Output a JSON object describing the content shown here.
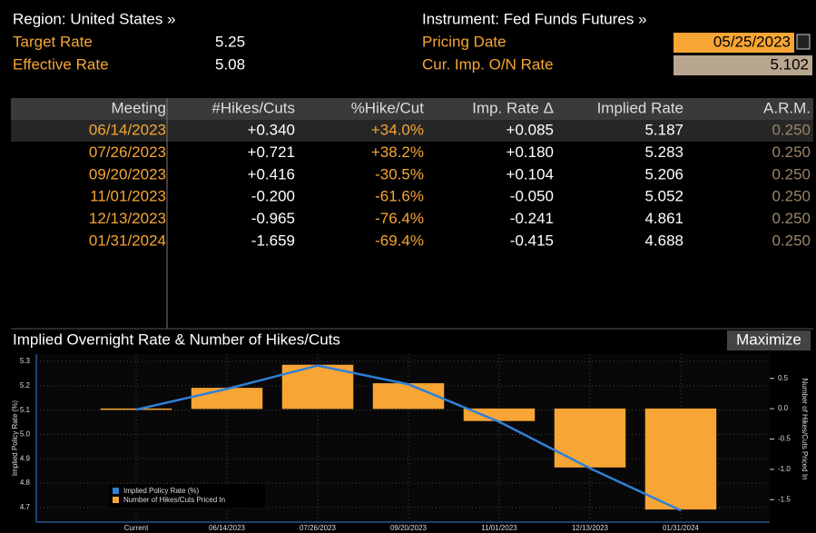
{
  "header": {
    "region": "Region: United States »",
    "instrument": "Instrument: Fed Funds Futures »",
    "target_rate": {
      "label": "Target Rate",
      "value": "5.25"
    },
    "effective_rate": {
      "label": "Effective Rate",
      "value": "5.08"
    },
    "pricing_date": {
      "label": "Pricing Date",
      "value": "05/25/2023"
    },
    "cur_imp_rate": {
      "label": "Cur. Imp. O/N Rate",
      "value": "5.102"
    }
  },
  "table": {
    "columns": [
      "Meeting",
      "#Hikes/Cuts",
      "%Hike/Cut",
      "Imp. Rate Δ",
      "Implied Rate",
      "A.R.M."
    ],
    "rows": [
      [
        "06/14/2023",
        "+0.340",
        "+34.0%",
        "+0.085",
        "5.187",
        "0.250"
      ],
      [
        "07/26/2023",
        "+0.721",
        "+38.2%",
        "+0.180",
        "5.283",
        "0.250"
      ],
      [
        "09/20/2023",
        "+0.416",
        "-30.5%",
        "+0.104",
        "5.206",
        "0.250"
      ],
      [
        "11/01/2023",
        "-0.200",
        "-61.6%",
        "-0.050",
        "5.052",
        "0.250"
      ],
      [
        "12/13/2023",
        "-0.965",
        "-76.4%",
        "-0.241",
        "4.861",
        "0.250"
      ],
      [
        "01/31/2024",
        "-1.659",
        "-69.4%",
        "-0.415",
        "4.688",
        "0.250"
      ]
    ]
  },
  "chart_panel": {
    "title": "Implied Overnight Rate & Number of Hikes/Cuts",
    "button": "Maximize"
  },
  "chart_data": {
    "type": "combo",
    "categories": [
      "Current",
      "06/14/2023",
      "07/26/2023",
      "09/20/2023",
      "11/01/2023",
      "12/13/2023",
      "01/31/2024"
    ],
    "ylabel": "Implied Policy Rate (%)",
    "y2label": "Number of Hikes/Cuts Priced In",
    "ylim": [
      4.64,
      5.33
    ],
    "yticks": [
      5.3,
      5.2,
      5.1,
      {
        "value": 5,
        "label": "5.0"
      },
      4.9,
      4.8,
      4.7
    ],
    "y2lim": [
      -1.87,
      0.9
    ],
    "y2ticks": [
      0.5,
      {
        "value": 0,
        "label": "0.0"
      },
      -0.5,
      {
        "value": -1,
        "label": "-1.0"
      },
      -1.5
    ],
    "grid": true,
    "legend": "lower-left",
    "series": [
      {
        "name": "Implied Policy Rate (%)",
        "type": "line",
        "color": "#2f7fd8",
        "values": [
          5.102,
          5.187,
          5.283,
          5.206,
          5.052,
          4.861,
          4.688
        ]
      },
      {
        "name": "Number of Hikes/Cuts Priced In",
        "type": "bar",
        "axis": "y2",
        "color": "#f7a534",
        "values": [
          0,
          0.34,
          0.721,
          0.416,
          -0.2,
          -0.965,
          -1.659
        ]
      }
    ]
  }
}
